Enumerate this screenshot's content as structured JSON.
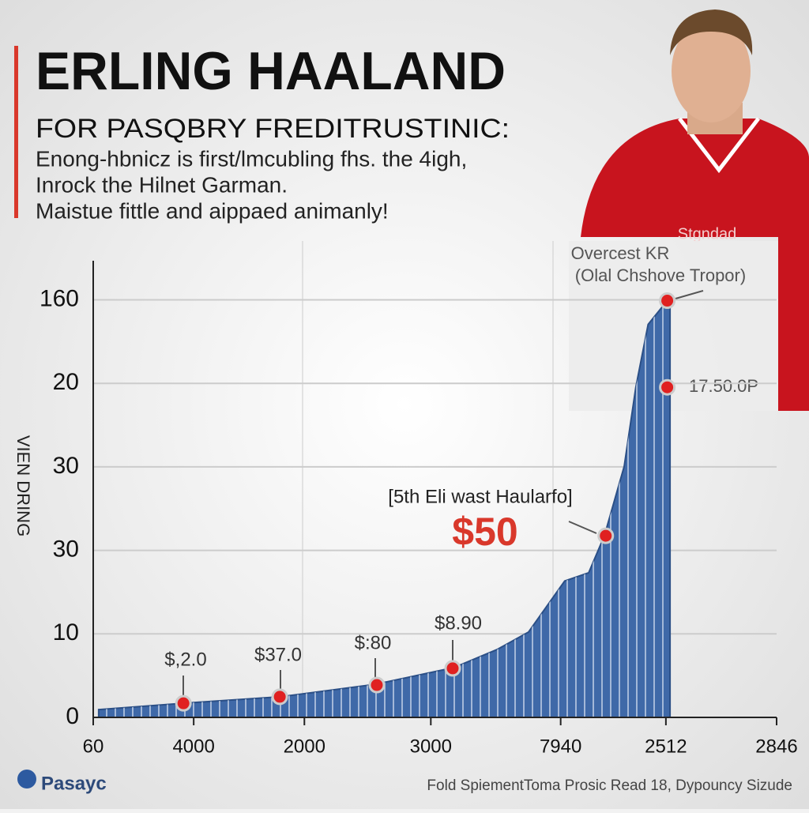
{
  "header": {
    "title": "ERLING HAALAND",
    "subtitle": "FOR PASQBRY FREDITRUSTINIC:",
    "lines": [
      "Enong-hbnicz is first/lmcubling fhs. the 4igh,",
      "Inrock the Hilnet Garman.",
      "Maistue fittle and aippaed animanly!"
    ]
  },
  "jersey_text": "Stgndad",
  "chart_data": {
    "type": "area",
    "y_label": "VIEN DRING",
    "color": "#3f69a8",
    "x": [
      0.8,
      13.0,
      27.4,
      41.3,
      52.8,
      59.1,
      63.7,
      69.0,
      72.5,
      74.8,
      77.7,
      79.4,
      81.2,
      84.0,
      84.4
    ],
    "values": [
      3,
      5.4,
      7.9,
      12.7,
      19.1,
      26,
      32.7,
      52.3,
      55.4,
      69.6,
      96.2,
      126.5,
      150.6,
      159.7,
      159.7
    ],
    "xlim": [
      0,
      100
    ],
    "ylim": [
      0,
      175
    ],
    "xticks": [
      {
        "value": 0,
        "label": "60"
      },
      {
        "value": 14.7,
        "label": "4000"
      },
      {
        "value": 30.9,
        "label": "2000"
      },
      {
        "value": 49.4,
        "label": "3000"
      },
      {
        "value": 68.4,
        "label": "7940"
      },
      {
        "value": 83.8,
        "label": "2512"
      },
      {
        "value": 100,
        "label": "2846"
      }
    ],
    "yticks": [
      0,
      {
        "value": 32,
        "label": "10"
      },
      {
        "value": 64,
        "label": "30"
      },
      {
        "value": 96,
        "label": "30"
      },
      {
        "value": 128,
        "label": "20"
      },
      160
    ],
    "grid": true,
    "markers": {
      "color": "#e02020",
      "x": [
        13.2,
        27.3,
        41.5,
        52.6,
        75.0,
        84.0,
        84.0
      ],
      "values": [
        5.4,
        7.9,
        12.4,
        18.8,
        69.6,
        159.7,
        126.5
      ]
    },
    "annotations": [
      "$,2.0",
      "$37.0",
      "$:80",
      "$8.90",
      "[5th Eli wast Haularfo]",
      "$50",
      "Overcest KR",
      "(Olal Chshove Tropor)",
      "17.50.0P"
    ]
  },
  "footer": {
    "brand": "Pasayc",
    "note": "Fold SpiementToma Prosic Read 18, Dypouncy Sizude"
  }
}
